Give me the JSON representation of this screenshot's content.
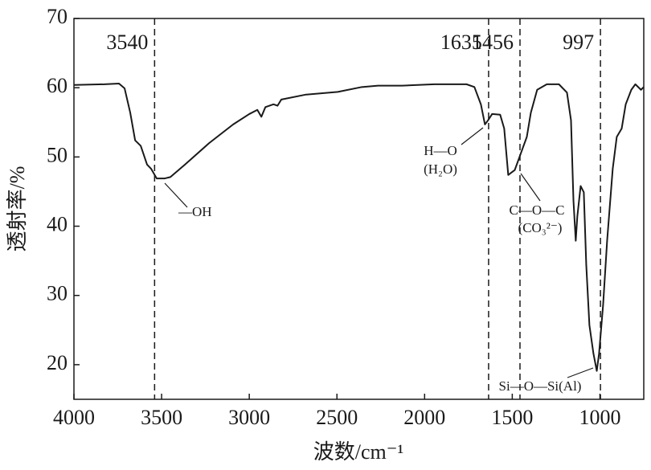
{
  "chart_data": {
    "type": "line",
    "x_label": "波数/cm⁻¹",
    "y_label": "透射率/%",
    "x": [
      4000,
      3826,
      3743,
      3711,
      3679,
      3651,
      3619,
      3583,
      3560,
      3528,
      3482,
      3450,
      3367,
      3229,
      3092,
      3000,
      2954,
      2931,
      2908,
      2862,
      2839,
      2817,
      2679,
      2495,
      2358,
      2266,
      2128,
      1945,
      1761,
      1716,
      1679,
      1656,
      1638,
      1615,
      1569,
      1546,
      1523,
      1486,
      1450,
      1417,
      1394,
      1358,
      1303,
      1234,
      1188,
      1165,
      1151,
      1138,
      1129,
      1110,
      1092,
      1078,
      1060,
      1037,
      1018,
      1005,
      982,
      959,
      927,
      904,
      876,
      853,
      821,
      798,
      766,
      750
    ],
    "series": [
      {
        "color": "#1a1a1a",
        "values": [
          60.4,
          60.5,
          60.6,
          59.9,
          56.4,
          52.4,
          51.6,
          48.9,
          48.3,
          46.9,
          46.9,
          47.1,
          48.9,
          52.0,
          54.7,
          56.2,
          56.8,
          55.8,
          57.2,
          57.6,
          57.4,
          58.3,
          59.0,
          59.4,
          60.1,
          60.3,
          60.3,
          60.5,
          60.5,
          60.1,
          57.6,
          54.7,
          55.3,
          56.2,
          56.1,
          54.1,
          47.4,
          48.1,
          50.6,
          52.9,
          56.4,
          59.7,
          60.5,
          60.5,
          59.3,
          55.3,
          43.7,
          37.9,
          41.4,
          45.8,
          44.9,
          34.4,
          25.7,
          21.6,
          19.1,
          21.6,
          28.6,
          37.9,
          48.3,
          52.9,
          54.1,
          57.6,
          59.7,
          60.5,
          59.7,
          60.1
        ]
      }
    ],
    "xlim": [
      4000,
      750
    ],
    "xticks": [
      4000,
      3500,
      3000,
      2500,
      2000,
      1500,
      1000
    ],
    "ylim": [
      15,
      70
    ],
    "yticks": [
      20,
      30,
      40,
      50,
      60,
      70
    ],
    "grid": false,
    "peak_lines": [
      3540,
      1635,
      1456,
      997
    ],
    "annotations": [
      "—OH",
      "H—O",
      "(H₂O)",
      "C—O—C",
      "(CO₃²⁻)",
      "Si—O—Si(Al)"
    ]
  }
}
